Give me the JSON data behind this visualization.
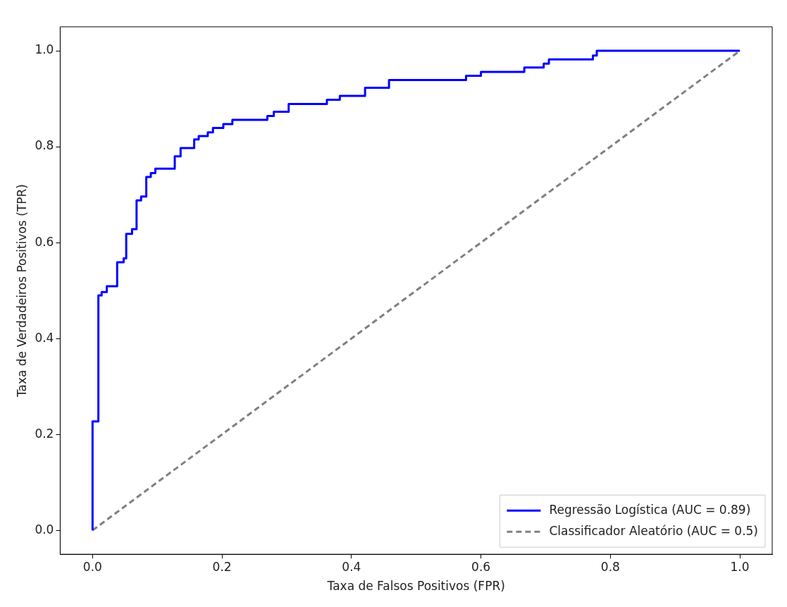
{
  "chart_data": {
    "type": "step",
    "xlabel": "Taxa de Falsos Positivos (FPR)",
    "ylabel": "Taxa de Verdadeiros Positivos (TPR)",
    "xlim": [
      -0.05,
      1.05
    ],
    "ylim": [
      -0.05,
      1.05
    ],
    "xticks": [
      {
        "value": 0,
        "label": "0.0"
      },
      0.2,
      0.4,
      0.6,
      0.8,
      {
        "value": 1,
        "label": "1.0"
      }
    ],
    "yticks": [
      {
        "value": 0,
        "label": "0.0"
      },
      0.2,
      0.4,
      0.6,
      0.8,
      {
        "value": 1,
        "label": "1.0"
      }
    ],
    "grid": false,
    "legend": "bottom right",
    "series": [
      {
        "name": "Regressão Logística (AUC = 0.89)",
        "type": "step",
        "color": "#0000ff",
        "line_style": "solid",
        "x": [
          0,
          0,
          0.009,
          0.014,
          0.022,
          0.038,
          0.048,
          0.052,
          0.061,
          0.068,
          0.075,
          0.083,
          0.09,
          0.097,
          0.127,
          0.136,
          0.157,
          0.164,
          0.178,
          0.186,
          0.202,
          0.216,
          0.27,
          0.28,
          0.303,
          0.362,
          0.382,
          0.421,
          0.458,
          0.577,
          0.6,
          0.667,
          0.697,
          0.705,
          0.773,
          0.779,
          1
        ],
        "values": [
          0,
          0.227,
          0.49,
          0.497,
          0.509,
          0.559,
          0.567,
          0.618,
          0.628,
          0.688,
          0.696,
          0.737,
          0.745,
          0.754,
          0.78,
          0.797,
          0.815,
          0.822,
          0.83,
          0.839,
          0.847,
          0.856,
          0.864,
          0.873,
          0.889,
          0.898,
          0.906,
          0.923,
          0.939,
          0.948,
          0.956,
          0.965,
          0.973,
          0.982,
          0.99,
          1,
          1
        ]
      },
      {
        "name": "Classificador Aleatório (AUC = 0.5)",
        "type": "line",
        "color": "#808080",
        "line_style": "dashed",
        "x": [
          0,
          1
        ],
        "values": [
          0,
          1
        ]
      }
    ]
  }
}
